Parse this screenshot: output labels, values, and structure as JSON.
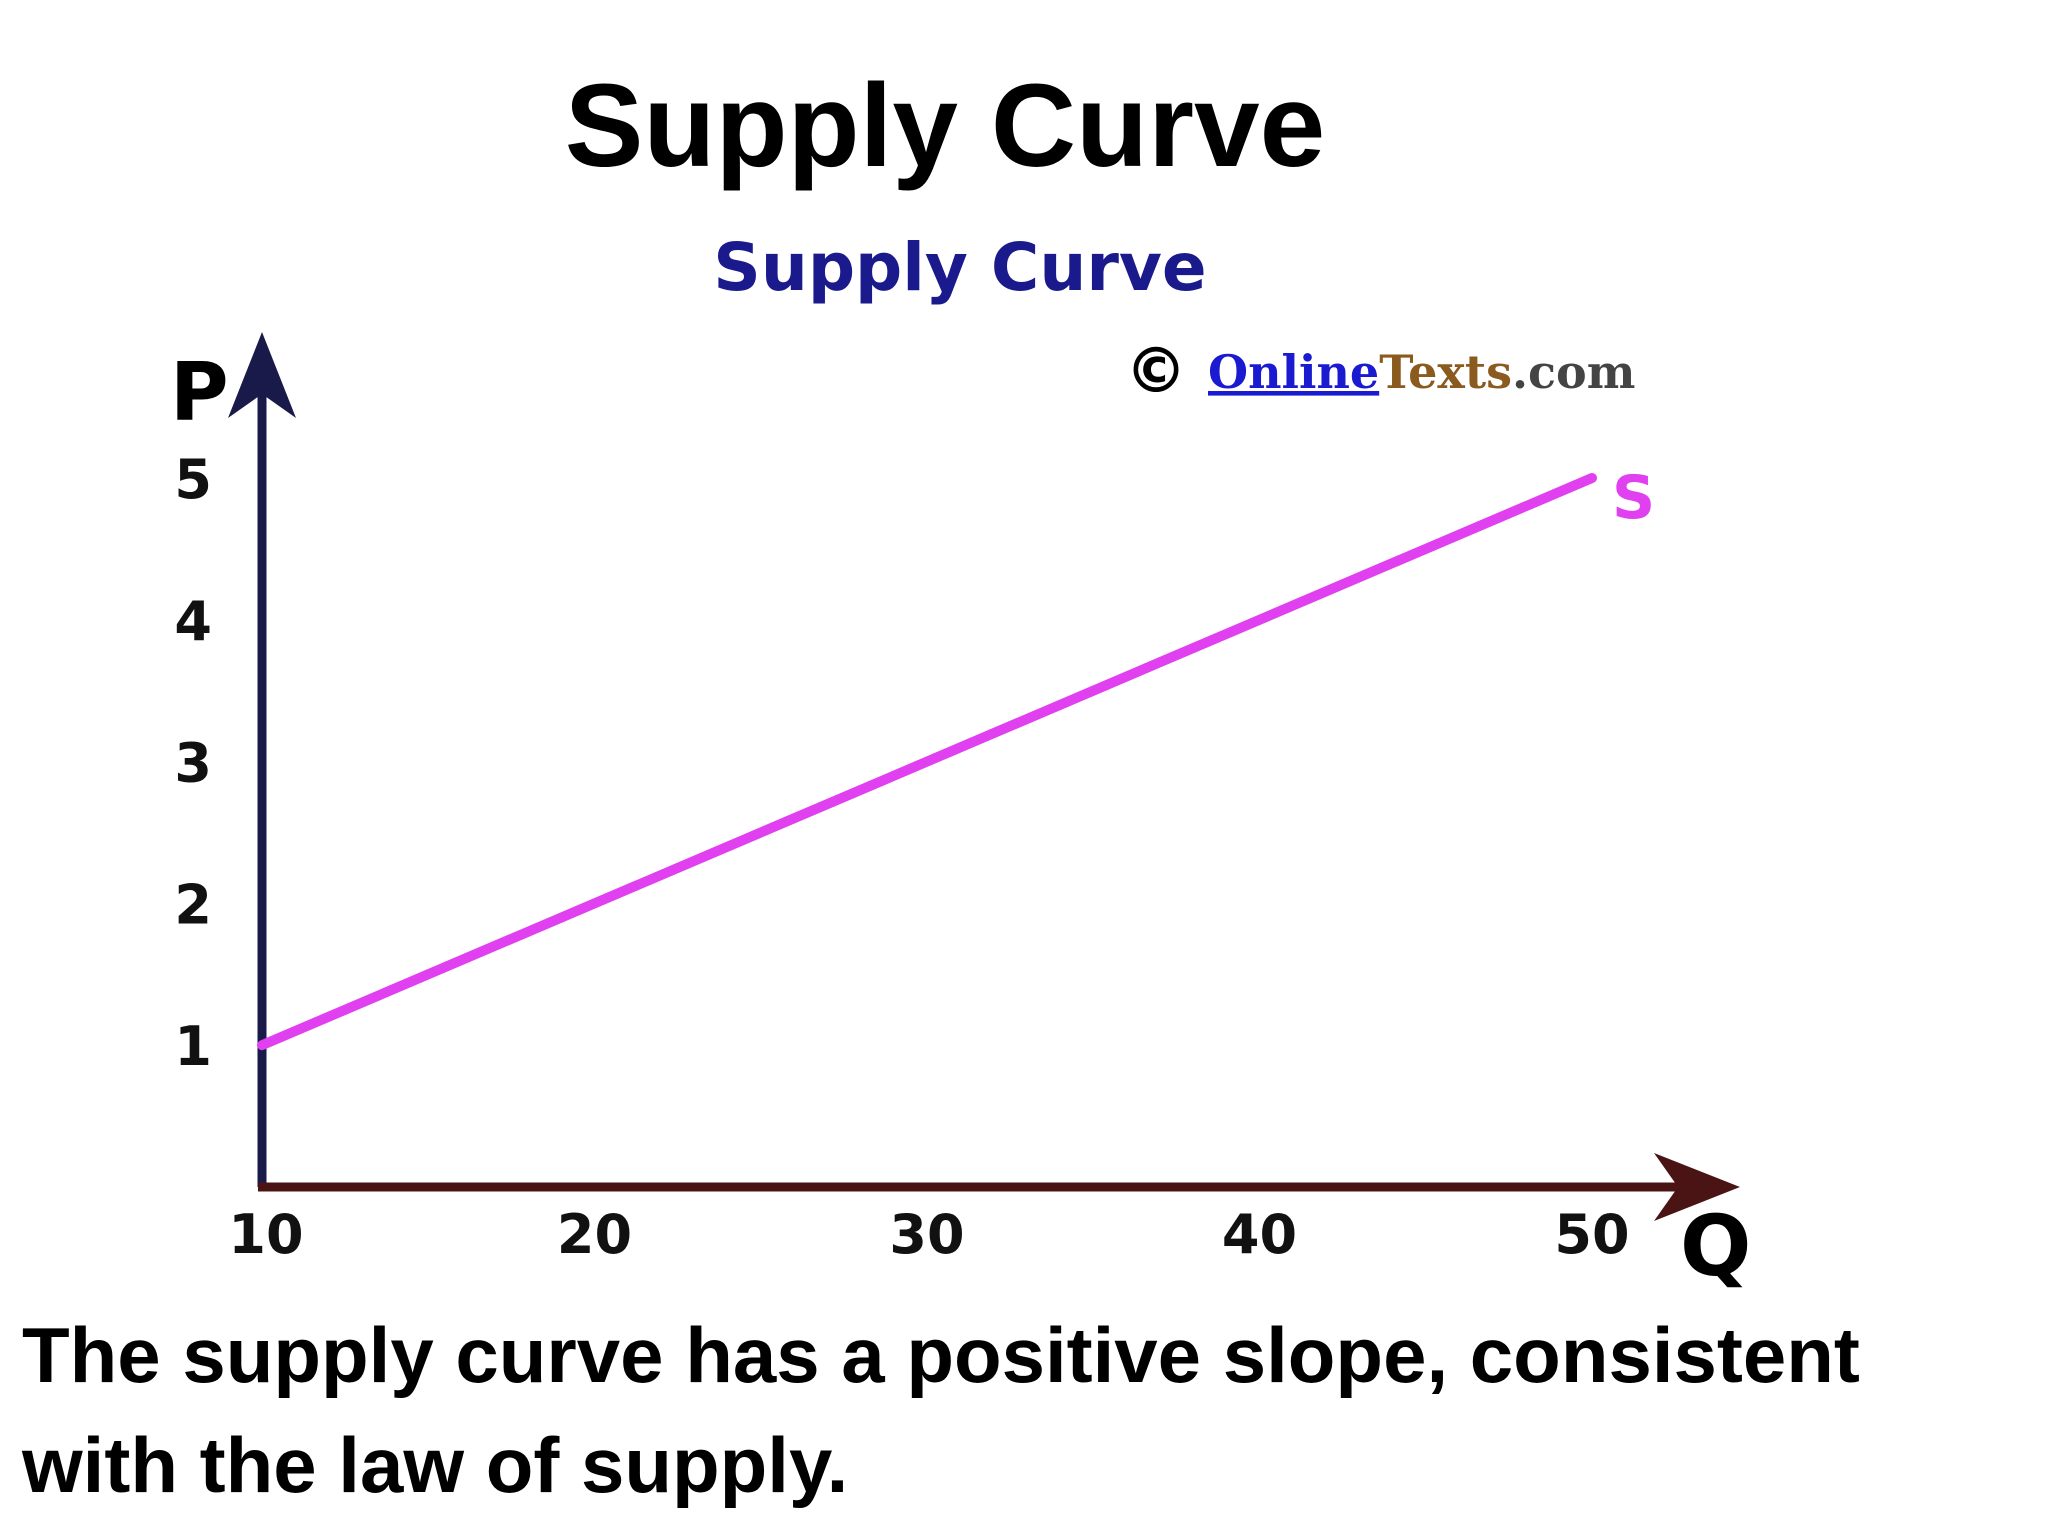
{
  "slide": {
    "title": "Supply Curve",
    "caption": "The supply curve has a positive slope, consistent with the law of supply."
  },
  "watermark": {
    "copyright_symbol": "©",
    "brand_underlined": "Online",
    "brand_rest": "Texts",
    "brand_suffix": ".com",
    "colors": {
      "underlined": "#1a1ad0",
      "rest": "#8a5a1e",
      "suffix": "#444444"
    }
  },
  "chart_data": {
    "type": "line",
    "title": "Supply Curve",
    "xlabel": "Q",
    "ylabel": "P",
    "xlim": [
      10,
      55
    ],
    "ylim": [
      0,
      5.6
    ],
    "x_ticks": [
      10,
      20,
      30,
      40,
      50
    ],
    "y_ticks": [
      1,
      2,
      3,
      4,
      5
    ],
    "grid": false,
    "series": [
      {
        "name": "S",
        "x": [
          10,
          50
        ],
        "y": [
          1,
          5
        ],
        "color": "#e040f0"
      }
    ],
    "colors": {
      "title": "#1a1a8c",
      "y_axis": "#1a1a4a",
      "x_axis": "#4a1414"
    }
  }
}
